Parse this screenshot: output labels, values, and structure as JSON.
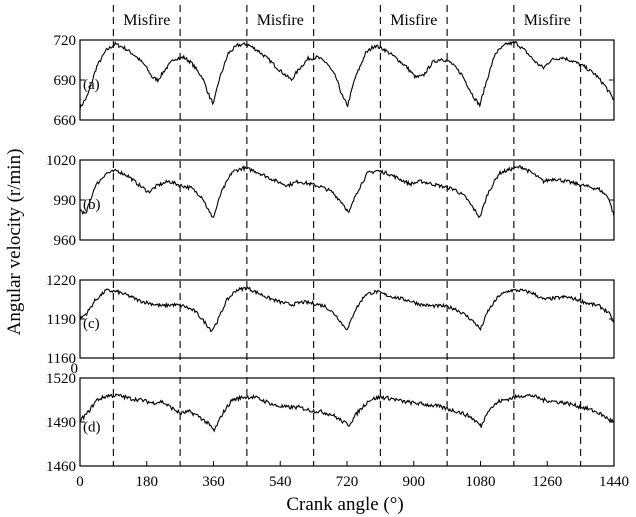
{
  "chart_data": {
    "type": "line",
    "xlabel": "Crank angle (°)",
    "ylabel": "Angular velocity (r/min)",
    "xlim": [
      0,
      1440
    ],
    "x_ticks": [
      "0",
      "180",
      "360",
      "540",
      "720",
      "900",
      "1080",
      "1260",
      "1440"
    ],
    "stray_tick": "0",
    "misfire_label": "Misfire",
    "misfire_windows": [
      [
        90,
        270
      ],
      [
        450,
        630
      ],
      [
        810,
        990
      ],
      [
        1170,
        1350
      ]
    ],
    "grid": false,
    "panels": [
      {
        "label": "(a)",
        "ylim": [
          660,
          720
        ],
        "y_ticks": [
          "720",
          "690",
          "660"
        ],
        "points": [
          [
            0,
            669
          ],
          [
            20,
            678
          ],
          [
            45,
            700
          ],
          [
            70,
            712
          ],
          [
            95,
            717
          ],
          [
            120,
            714
          ],
          [
            150,
            708
          ],
          [
            175,
            701
          ],
          [
            195,
            692
          ],
          [
            210,
            690
          ],
          [
            230,
            698
          ],
          [
            255,
            706
          ],
          [
            280,
            707
          ],
          [
            300,
            703
          ],
          [
            330,
            692
          ],
          [
            350,
            677
          ],
          [
            360,
            672
          ],
          [
            375,
            690
          ],
          [
            400,
            710
          ],
          [
            425,
            716
          ],
          [
            450,
            717
          ],
          [
            480,
            712
          ],
          [
            510,
            705
          ],
          [
            540,
            697
          ],
          [
            570,
            690
          ],
          [
            590,
            698
          ],
          [
            615,
            706
          ],
          [
            640,
            707
          ],
          [
            665,
            703
          ],
          [
            690,
            692
          ],
          [
            710,
            676
          ],
          [
            722,
            671
          ],
          [
            740,
            690
          ],
          [
            770,
            710
          ],
          [
            795,
            716
          ],
          [
            820,
            713
          ],
          [
            850,
            707
          ],
          [
            880,
            700
          ],
          [
            905,
            692
          ],
          [
            925,
            693
          ],
          [
            950,
            703
          ],
          [
            975,
            706
          ],
          [
            1000,
            703
          ],
          [
            1030,
            694
          ],
          [
            1060,
            678
          ],
          [
            1078,
            671
          ],
          [
            1095,
            688
          ],
          [
            1120,
            710
          ],
          [
            1150,
            717
          ],
          [
            1175,
            718
          ],
          [
            1200,
            712
          ],
          [
            1230,
            703
          ],
          [
            1250,
            699
          ],
          [
            1270,
            705
          ],
          [
            1300,
            707
          ],
          [
            1330,
            704
          ],
          [
            1360,
            700
          ],
          [
            1390,
            694
          ],
          [
            1415,
            686
          ],
          [
            1440,
            675
          ]
        ]
      },
      {
        "label": "(b)",
        "ylim": [
          960,
          1020
        ],
        "y_ticks": [
          "1020",
          "990",
          "960"
        ],
        "points": [
          [
            0,
            983
          ],
          [
            15,
            979
          ],
          [
            40,
            1000
          ],
          [
            70,
            1010
          ],
          [
            100,
            1012
          ],
          [
            130,
            1008
          ],
          [
            160,
            1001
          ],
          [
            185,
            996
          ],
          [
            210,
            1001
          ],
          [
            240,
            1004
          ],
          [
            270,
            1001
          ],
          [
            300,
            999
          ],
          [
            330,
            992
          ],
          [
            350,
            980
          ],
          [
            360,
            977
          ],
          [
            380,
            995
          ],
          [
            410,
            1011
          ],
          [
            440,
            1014
          ],
          [
            470,
            1012
          ],
          [
            500,
            1008
          ],
          [
            530,
            1004
          ],
          [
            560,
            1001
          ],
          [
            590,
            1004
          ],
          [
            620,
            1002
          ],
          [
            650,
            1000
          ],
          [
            680,
            996
          ],
          [
            710,
            987
          ],
          [
            725,
            980
          ],
          [
            745,
            995
          ],
          [
            775,
            1010
          ],
          [
            800,
            1012
          ],
          [
            830,
            1010
          ],
          [
            860,
            1006
          ],
          [
            890,
            1002
          ],
          [
            920,
            1004
          ],
          [
            950,
            1002
          ],
          [
            980,
            1000
          ],
          [
            1010,
            998
          ],
          [
            1040,
            992
          ],
          [
            1065,
            982
          ],
          [
            1078,
            977
          ],
          [
            1100,
            995
          ],
          [
            1130,
            1010
          ],
          [
            1160,
            1013
          ],
          [
            1190,
            1015
          ],
          [
            1220,
            1010
          ],
          [
            1250,
            1004
          ],
          [
            1280,
            1006
          ],
          [
            1310,
            1004
          ],
          [
            1340,
            1002
          ],
          [
            1370,
            1000
          ],
          [
            1400,
            998
          ],
          [
            1425,
            992
          ],
          [
            1440,
            978
          ]
        ]
      },
      {
        "label": "(c)",
        "ylim": [
          1160,
          1220
        ],
        "y_ticks": [
          "1220",
          "1190",
          "1160"
        ],
        "points": [
          [
            0,
            1190
          ],
          [
            20,
            1195
          ],
          [
            40,
            1204
          ],
          [
            70,
            1212
          ],
          [
            100,
            1211
          ],
          [
            130,
            1208
          ],
          [
            160,
            1204
          ],
          [
            190,
            1202
          ],
          [
            220,
            1200
          ],
          [
            250,
            1201
          ],
          [
            280,
            1200
          ],
          [
            310,
            1196
          ],
          [
            335,
            1188
          ],
          [
            355,
            1181
          ],
          [
            370,
            1188
          ],
          [
            395,
            1204
          ],
          [
            420,
            1212
          ],
          [
            450,
            1214
          ],
          [
            480,
            1210
          ],
          [
            510,
            1206
          ],
          [
            540,
            1203
          ],
          [
            570,
            1201
          ],
          [
            600,
            1203
          ],
          [
            630,
            1202
          ],
          [
            660,
            1200
          ],
          [
            690,
            1193
          ],
          [
            710,
            1185
          ],
          [
            722,
            1182
          ],
          [
            740,
            1196
          ],
          [
            770,
            1209
          ],
          [
            800,
            1211
          ],
          [
            830,
            1208
          ],
          [
            860,
            1206
          ],
          [
            890,
            1204
          ],
          [
            920,
            1201
          ],
          [
            950,
            1200
          ],
          [
            980,
            1200
          ],
          [
            1010,
            1198
          ],
          [
            1040,
            1193
          ],
          [
            1065,
            1187
          ],
          [
            1080,
            1182
          ],
          [
            1100,
            1196
          ],
          [
            1130,
            1208
          ],
          [
            1160,
            1212
          ],
          [
            1190,
            1212
          ],
          [
            1220,
            1210
          ],
          [
            1250,
            1205
          ],
          [
            1280,
            1206
          ],
          [
            1310,
            1207
          ],
          [
            1340,
            1205
          ],
          [
            1370,
            1202
          ],
          [
            1400,
            1200
          ],
          [
            1425,
            1195
          ],
          [
            1440,
            1187
          ]
        ]
      },
      {
        "label": "(d)",
        "ylim": [
          1460,
          1520
        ],
        "y_ticks": [
          "1520",
          "1490",
          "1460"
        ],
        "points": [
          [
            0,
            1491
          ],
          [
            20,
            1496
          ],
          [
            45,
            1505
          ],
          [
            75,
            1508
          ],
          [
            105,
            1508
          ],
          [
            135,
            1506
          ],
          [
            165,
            1505
          ],
          [
            195,
            1503
          ],
          [
            220,
            1504
          ],
          [
            245,
            1500
          ],
          [
            270,
            1496
          ],
          [
            295,
            1497
          ],
          [
            320,
            1494
          ],
          [
            345,
            1489
          ],
          [
            362,
            1484
          ],
          [
            385,
            1496
          ],
          [
            410,
            1505
          ],
          [
            440,
            1507
          ],
          [
            470,
            1507
          ],
          [
            500,
            1504
          ],
          [
            530,
            1501
          ],
          [
            560,
            1500
          ],
          [
            590,
            1500
          ],
          [
            620,
            1498
          ],
          [
            650,
            1497
          ],
          [
            680,
            1495
          ],
          [
            710,
            1490
          ],
          [
            725,
            1488
          ],
          [
            750,
            1497
          ],
          [
            780,
            1505
          ],
          [
            810,
            1507
          ],
          [
            840,
            1506
          ],
          [
            870,
            1504
          ],
          [
            900,
            1503
          ],
          [
            930,
            1502
          ],
          [
            960,
            1501
          ],
          [
            990,
            1499
          ],
          [
            1020,
            1497
          ],
          [
            1050,
            1494
          ],
          [
            1070,
            1490
          ],
          [
            1082,
            1487
          ],
          [
            1100,
            1498
          ],
          [
            1130,
            1504
          ],
          [
            1160,
            1506
          ],
          [
            1190,
            1508
          ],
          [
            1220,
            1508
          ],
          [
            1250,
            1505
          ],
          [
            1280,
            1504
          ],
          [
            1310,
            1503
          ],
          [
            1340,
            1501
          ],
          [
            1370,
            1499
          ],
          [
            1400,
            1496
          ],
          [
            1425,
            1492
          ],
          [
            1440,
            1490
          ]
        ]
      }
    ]
  }
}
